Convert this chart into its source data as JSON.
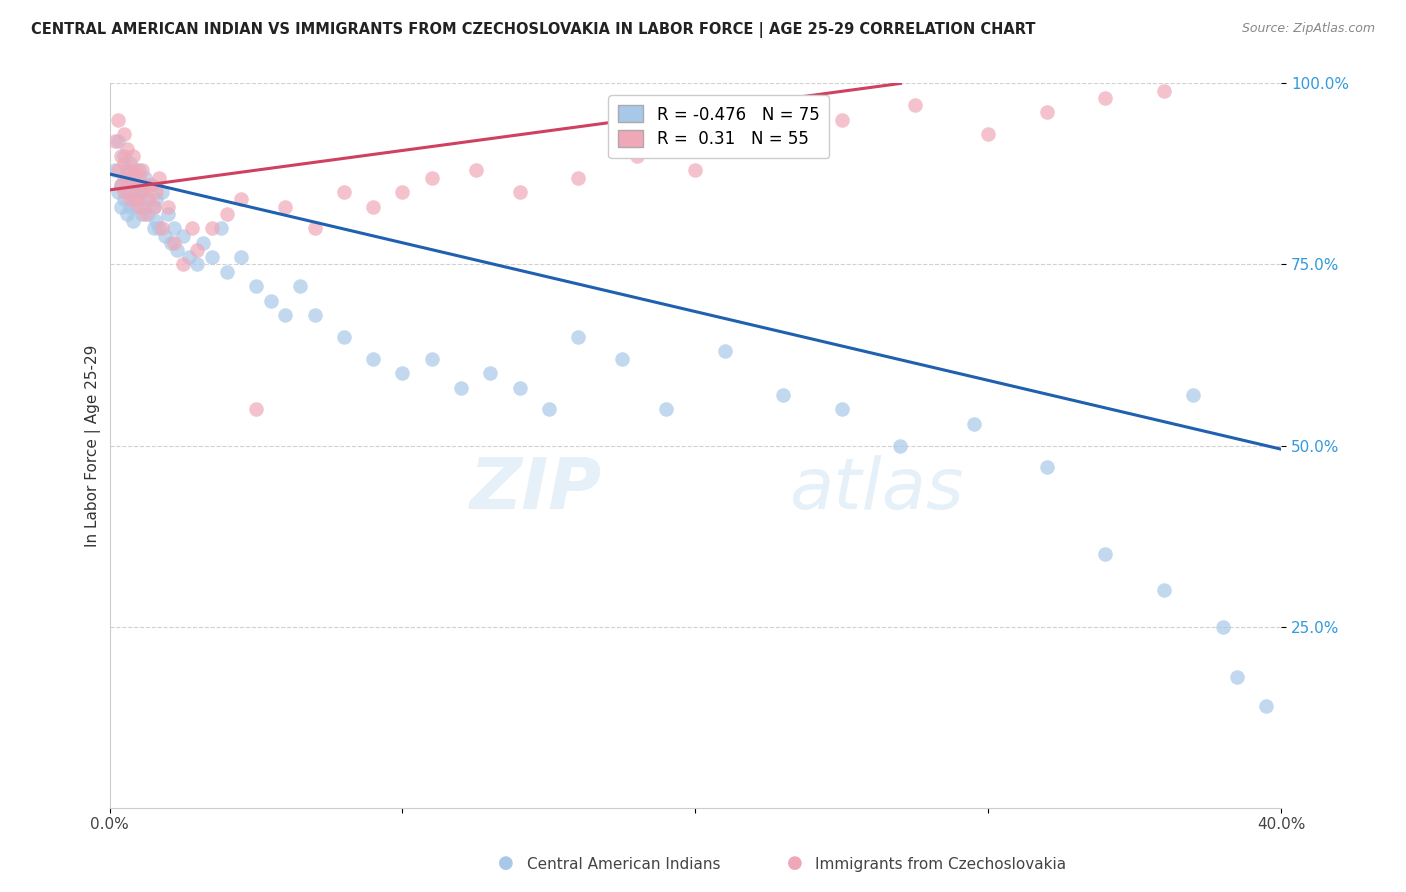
{
  "title": "CENTRAL AMERICAN INDIAN VS IMMIGRANTS FROM CZECHOSLOVAKIA IN LABOR FORCE | AGE 25-29 CORRELATION CHART",
  "source": "Source: ZipAtlas.com",
  "ylabel": "In Labor Force | Age 25-29",
  "xlim": [
    0.0,
    0.4
  ],
  "ylim": [
    0.0,
    1.0
  ],
  "xticks": [
    0.0,
    0.1,
    0.2,
    0.3,
    0.4
  ],
  "xticklabels": [
    "0.0%",
    "",
    "",
    "",
    "40.0%"
  ],
  "ytick_positions": [
    0.25,
    0.5,
    0.75,
    1.0
  ],
  "yticklabels": [
    "25.0%",
    "50.0%",
    "75.0%",
    "100.0%"
  ],
  "blue_R": -0.476,
  "blue_N": 75,
  "pink_R": 0.31,
  "pink_N": 55,
  "blue_label": "Central American Indians",
  "pink_label": "Immigrants from Czechoslovakia",
  "blue_color": "#a8c8e8",
  "pink_color": "#f0a8b8",
  "blue_line_color": "#2060b0",
  "pink_line_color": "#d04060",
  "watermark_zip": "ZIP",
  "watermark_atlas": "atlas",
  "blue_scatter_x": [
    0.002,
    0.003,
    0.003,
    0.004,
    0.004,
    0.005,
    0.005,
    0.005,
    0.006,
    0.006,
    0.006,
    0.007,
    0.007,
    0.007,
    0.008,
    0.008,
    0.008,
    0.009,
    0.009,
    0.01,
    0.01,
    0.011,
    0.011,
    0.012,
    0.012,
    0.013,
    0.013,
    0.014,
    0.015,
    0.015,
    0.016,
    0.016,
    0.017,
    0.018,
    0.019,
    0.02,
    0.021,
    0.022,
    0.023,
    0.025,
    0.027,
    0.03,
    0.032,
    0.035,
    0.038,
    0.04,
    0.045,
    0.05,
    0.055,
    0.06,
    0.065,
    0.07,
    0.08,
    0.09,
    0.1,
    0.11,
    0.12,
    0.13,
    0.14,
    0.15,
    0.16,
    0.175,
    0.19,
    0.21,
    0.23,
    0.25,
    0.27,
    0.295,
    0.32,
    0.34,
    0.36,
    0.37,
    0.38,
    0.385,
    0.395
  ],
  "blue_scatter_y": [
    0.88,
    0.85,
    0.92,
    0.83,
    0.86,
    0.9,
    0.84,
    0.87,
    0.82,
    0.88,
    0.86,
    0.85,
    0.83,
    0.89,
    0.84,
    0.87,
    0.81,
    0.86,
    0.83,
    0.85,
    0.88,
    0.82,
    0.85,
    0.83,
    0.87,
    0.84,
    0.82,
    0.86,
    0.8,
    0.83,
    0.84,
    0.81,
    0.8,
    0.85,
    0.79,
    0.82,
    0.78,
    0.8,
    0.77,
    0.79,
    0.76,
    0.75,
    0.78,
    0.76,
    0.8,
    0.74,
    0.76,
    0.72,
    0.7,
    0.68,
    0.72,
    0.68,
    0.65,
    0.62,
    0.6,
    0.62,
    0.58,
    0.6,
    0.58,
    0.55,
    0.65,
    0.62,
    0.55,
    0.63,
    0.57,
    0.55,
    0.5,
    0.53,
    0.47,
    0.35,
    0.3,
    0.57,
    0.25,
    0.18,
    0.14
  ],
  "pink_scatter_x": [
    0.002,
    0.003,
    0.003,
    0.004,
    0.004,
    0.005,
    0.005,
    0.005,
    0.006,
    0.006,
    0.007,
    0.007,
    0.008,
    0.008,
    0.009,
    0.009,
    0.01,
    0.01,
    0.011,
    0.011,
    0.012,
    0.012,
    0.013,
    0.014,
    0.015,
    0.016,
    0.017,
    0.018,
    0.02,
    0.022,
    0.025,
    0.028,
    0.03,
    0.035,
    0.04,
    0.045,
    0.05,
    0.06,
    0.07,
    0.08,
    0.09,
    0.1,
    0.11,
    0.125,
    0.14,
    0.16,
    0.18,
    0.2,
    0.22,
    0.25,
    0.275,
    0.3,
    0.32,
    0.34,
    0.36
  ],
  "pink_scatter_y": [
    0.92,
    0.88,
    0.95,
    0.9,
    0.86,
    0.93,
    0.89,
    0.85,
    0.91,
    0.87,
    0.88,
    0.84,
    0.9,
    0.86,
    0.88,
    0.84,
    0.87,
    0.83,
    0.85,
    0.88,
    0.86,
    0.82,
    0.84,
    0.86,
    0.83,
    0.85,
    0.87,
    0.8,
    0.83,
    0.78,
    0.75,
    0.8,
    0.77,
    0.8,
    0.82,
    0.84,
    0.55,
    0.83,
    0.8,
    0.85,
    0.83,
    0.85,
    0.87,
    0.88,
    0.85,
    0.87,
    0.9,
    0.88,
    0.92,
    0.95,
    0.97,
    0.93,
    0.96,
    0.98,
    0.99
  ],
  "blue_line_x0": 0.0,
  "blue_line_x1": 0.4,
  "blue_line_y0": 0.875,
  "blue_line_y1": 0.495,
  "pink_line_x0": 0.0,
  "pink_line_x1": 0.27,
  "pink_line_y0": 0.853,
  "pink_line_y1": 1.0
}
